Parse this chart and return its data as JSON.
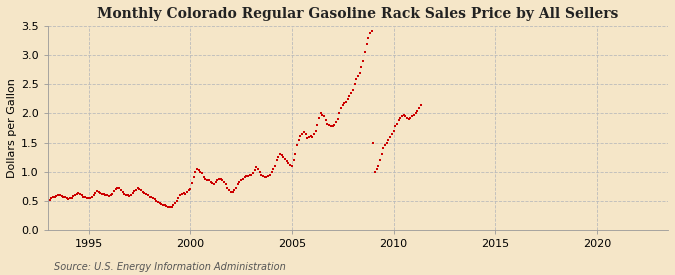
{
  "title": "Monthly Colorado Regular Gasoline Rack Sales Price by All Sellers",
  "ylabel": "Dollars per Gallon",
  "source": "Source: U.S. Energy Information Administration",
  "xlim": [
    1993.0,
    2023.5
  ],
  "ylim": [
    0.0,
    3.5
  ],
  "yticks": [
    0.0,
    0.5,
    1.0,
    1.5,
    2.0,
    2.5,
    3.0,
    3.5
  ],
  "xticks": [
    1995,
    2000,
    2005,
    2010,
    2015,
    2020
  ],
  "marker_color": "#CC0000",
  "bg_color": "#F5E6C8",
  "plot_bg_color": "#F5E6C8",
  "grid_color": "#BBBBBB",
  "title_fontsize": 10,
  "label_fontsize": 8,
  "tick_fontsize": 8,
  "source_fontsize": 7,
  "dates": [
    1993.08,
    1993.17,
    1993.25,
    1993.33,
    1993.42,
    1993.5,
    1993.58,
    1993.67,
    1993.75,
    1993.83,
    1993.92,
    1994.0,
    1994.08,
    1994.17,
    1994.25,
    1994.33,
    1994.42,
    1994.5,
    1994.58,
    1994.67,
    1994.75,
    1994.83,
    1994.92,
    1995.0,
    1995.08,
    1995.17,
    1995.25,
    1995.33,
    1995.42,
    1995.5,
    1995.58,
    1995.67,
    1995.75,
    1995.83,
    1995.92,
    1996.0,
    1996.08,
    1996.17,
    1996.25,
    1996.33,
    1996.42,
    1996.5,
    1996.58,
    1996.67,
    1996.75,
    1996.83,
    1996.92,
    1997.0,
    1997.08,
    1997.17,
    1997.25,
    1997.33,
    1997.42,
    1997.5,
    1997.58,
    1997.67,
    1997.75,
    1997.83,
    1997.92,
    1998.0,
    1998.08,
    1998.17,
    1998.25,
    1998.33,
    1998.42,
    1998.5,
    1998.58,
    1998.67,
    1998.75,
    1998.83,
    1998.92,
    1999.0,
    1999.08,
    1999.17,
    1999.25,
    1999.33,
    1999.42,
    1999.5,
    1999.58,
    1999.67,
    1999.75,
    1999.83,
    1999.92,
    2000.0,
    2000.08,
    2000.17,
    2000.25,
    2000.33,
    2000.42,
    2000.5,
    2000.58,
    2000.67,
    2000.75,
    2000.83,
    2000.92,
    2001.0,
    2001.08,
    2001.17,
    2001.25,
    2001.33,
    2001.42,
    2001.5,
    2001.58,
    2001.67,
    2001.75,
    2001.83,
    2001.92,
    2002.0,
    2002.08,
    2002.17,
    2002.25,
    2002.33,
    2002.42,
    2002.5,
    2002.58,
    2002.67,
    2002.75,
    2002.83,
    2002.92,
    2003.0,
    2003.08,
    2003.17,
    2003.25,
    2003.33,
    2003.42,
    2003.5,
    2003.58,
    2003.67,
    2003.75,
    2003.83,
    2003.92,
    2004.0,
    2004.08,
    2004.17,
    2004.25,
    2004.33,
    2004.42,
    2004.5,
    2004.58,
    2004.67,
    2004.75,
    2004.83,
    2004.92,
    2005.0,
    2005.08,
    2005.17,
    2005.25,
    2005.33,
    2005.42,
    2005.5,
    2005.58,
    2005.67,
    2005.75,
    2005.83,
    2005.92,
    2006.0,
    2006.08,
    2006.17,
    2006.25,
    2006.33,
    2006.42,
    2006.5,
    2006.58,
    2006.67,
    2006.75,
    2006.83,
    2006.92,
    2007.0,
    2007.08,
    2007.17,
    2007.25,
    2007.33,
    2007.42,
    2007.5,
    2007.58,
    2007.67,
    2007.75,
    2007.83,
    2007.92,
    2008.0,
    2008.08,
    2008.17,
    2008.25,
    2008.33,
    2008.42,
    2008.5,
    2008.58,
    2008.67,
    2008.75,
    2008.83,
    2008.92,
    2009.0,
    2009.08,
    2009.17,
    2009.25,
    2009.33,
    2009.42,
    2009.5,
    2009.58,
    2009.67,
    2009.75,
    2009.83,
    2009.92,
    2010.0,
    2010.08,
    2010.17,
    2010.25,
    2010.33,
    2010.42,
    2010.5,
    2010.58,
    2010.67,
    2010.75,
    2010.83,
    2010.92,
    2011.0,
    2011.08,
    2011.17,
    2011.25,
    2011.33
  ],
  "values": [
    0.52,
    0.55,
    0.57,
    0.56,
    0.58,
    0.6,
    0.59,
    0.58,
    0.57,
    0.56,
    0.54,
    0.53,
    0.54,
    0.55,
    0.58,
    0.6,
    0.62,
    0.63,
    0.61,
    0.59,
    0.57,
    0.56,
    0.55,
    0.54,
    0.55,
    0.57,
    0.6,
    0.64,
    0.67,
    0.65,
    0.63,
    0.62,
    0.61,
    0.6,
    0.59,
    0.58,
    0.59,
    0.62,
    0.67,
    0.7,
    0.72,
    0.71,
    0.68,
    0.65,
    0.62,
    0.6,
    0.59,
    0.58,
    0.6,
    0.63,
    0.66,
    0.69,
    0.71,
    0.7,
    0.68,
    0.65,
    0.63,
    0.61,
    0.59,
    0.57,
    0.56,
    0.54,
    0.53,
    0.5,
    0.48,
    0.46,
    0.44,
    0.43,
    0.42,
    0.41,
    0.4,
    0.39,
    0.4,
    0.43,
    0.46,
    0.5,
    0.55,
    0.6,
    0.62,
    0.63,
    0.62,
    0.65,
    0.68,
    0.7,
    0.8,
    0.9,
    1.0,
    1.05,
    1.02,
    1.0,
    0.98,
    0.9,
    0.88,
    0.86,
    0.85,
    0.83,
    0.8,
    0.78,
    0.82,
    0.85,
    0.88,
    0.87,
    0.85,
    0.82,
    0.78,
    0.72,
    0.68,
    0.65,
    0.65,
    0.68,
    0.72,
    0.78,
    0.82,
    0.85,
    0.88,
    0.9,
    0.92,
    0.93,
    0.95,
    0.95,
    0.98,
    1.02,
    1.08,
    1.05,
    1.0,
    0.95,
    0.92,
    0.9,
    0.9,
    0.92,
    0.95,
    1.0,
    1.05,
    1.1,
    1.2,
    1.25,
    1.3,
    1.28,
    1.25,
    1.22,
    1.18,
    1.15,
    1.12,
    1.1,
    1.2,
    1.3,
    1.45,
    1.55,
    1.62,
    1.65,
    1.68,
    1.65,
    1.58,
    1.6,
    1.62,
    1.6,
    1.65,
    1.7,
    1.8,
    1.92,
    2.0,
    1.98,
    1.95,
    1.88,
    1.82,
    1.8,
    1.78,
    1.78,
    1.8,
    1.85,
    1.9,
    2.0,
    2.1,
    2.15,
    2.18,
    2.2,
    2.25,
    2.3,
    2.35,
    2.4,
    2.5,
    2.6,
    2.65,
    2.7,
    2.8,
    2.9,
    3.05,
    3.2,
    3.3,
    3.38,
    3.42,
    1.5,
    1.0,
    1.05,
    1.1,
    1.2,
    1.3,
    1.4,
    1.45,
    1.5,
    1.55,
    1.6,
    1.65,
    1.7,
    1.78,
    1.82,
    1.88,
    1.92,
    1.95,
    1.98,
    1.95,
    1.92,
    1.9,
    1.92,
    1.95,
    1.98,
    2.0,
    2.05,
    2.1,
    2.15
  ]
}
